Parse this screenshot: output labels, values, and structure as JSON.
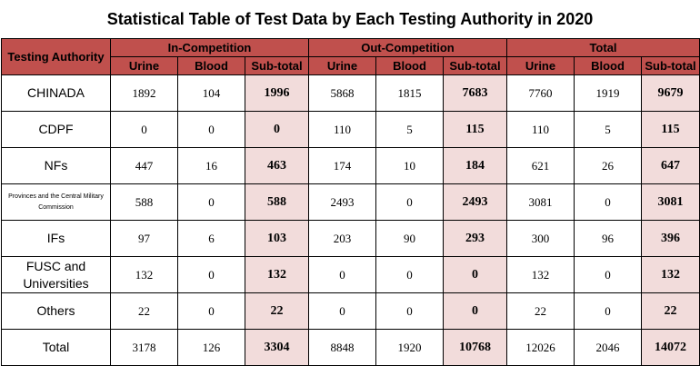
{
  "title": "Statistical Table of Test Data by Each Testing Authority in 2020",
  "headers": {
    "authority": "Testing Authority",
    "groups": [
      "In-Competition",
      "Out-Competition",
      "Total"
    ],
    "subcolumns": [
      "Urine",
      "Blood",
      "Sub-total"
    ]
  },
  "rows": [
    {
      "authority": "CHINADA",
      "values": [
        "1892",
        "104",
        "1996",
        "5868",
        "1815",
        "7683",
        "7760",
        "1919",
        "9679"
      ]
    },
    {
      "authority": "CDPF",
      "values": [
        "0",
        "0",
        "0",
        "110",
        "5",
        "115",
        "110",
        "5",
        "115"
      ]
    },
    {
      "authority": "NFs",
      "values": [
        "447",
        "16",
        "463",
        "174",
        "10",
        "184",
        "621",
        "26",
        "647"
      ]
    },
    {
      "authority": "Provinces and the Central Military Commission",
      "values": [
        "588",
        "0",
        "588",
        "2493",
        "0",
        "2493",
        "3081",
        "0",
        "3081"
      ]
    },
    {
      "authority": "IFs",
      "values": [
        "97",
        "6",
        "103",
        "203",
        "90",
        "293",
        "300",
        "96",
        "396"
      ]
    },
    {
      "authority": "FUSC and Universities",
      "values": [
        "132",
        "0",
        "132",
        "0",
        "0",
        "0",
        "132",
        "0",
        "132"
      ]
    },
    {
      "authority": "Others",
      "values": [
        "22",
        "0",
        "22",
        "0",
        "0",
        "0",
        "22",
        "0",
        "22"
      ]
    },
    {
      "authority": "Total",
      "values": [
        "3178",
        "126",
        "3304",
        "8848",
        "1920",
        "10768",
        "12026",
        "2046",
        "14072"
      ]
    }
  ],
  "colors": {
    "header_bg": "#c0504d",
    "subtotal_bg": "#f2dcdb"
  }
}
